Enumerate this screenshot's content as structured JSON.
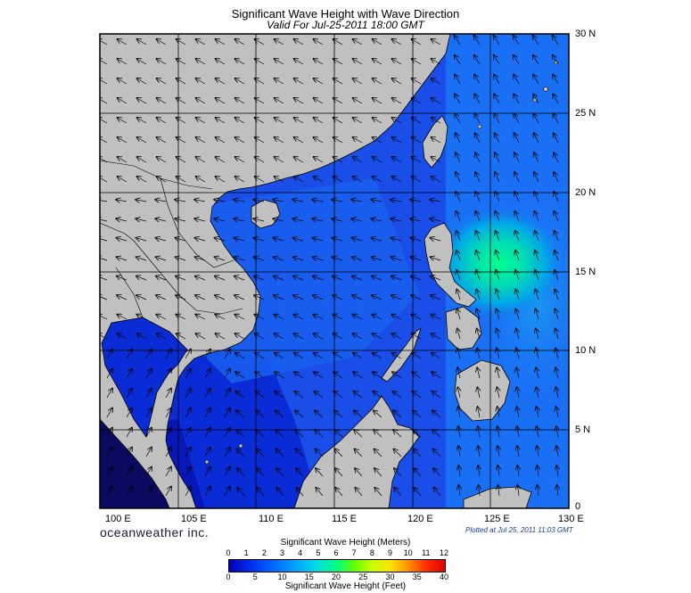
{
  "title": "Significant Wave Height with Wave Direction",
  "subtitle": "Valid For Jul-25-2011 18:00 GMT",
  "lon_labels": [
    "100 E",
    "105 E",
    "110 E",
    "115 E",
    "120 E",
    "125 E",
    "130 E"
  ],
  "lat_labels": [
    "30 N",
    "25 N",
    "20 N",
    "15 N",
    "10 N",
    "5 N",
    "0"
  ],
  "brand": "oceanweather inc.",
  "plotted": "Plotted at Jul 25, 2011 11:03 GMT",
  "colorbar": {
    "title_meters": "Significant Wave Height (Meters)",
    "title_feet": "Significant Wave Height (Feet)",
    "meter_ticks": [
      "0",
      "1",
      "2",
      "3",
      "4",
      "5",
      "6",
      "7",
      "8",
      "9",
      "10",
      "11",
      "12"
    ],
    "feet_ticks": [
      "0",
      "5",
      "10",
      "15",
      "20",
      "25",
      "30",
      "35",
      "40"
    ]
  },
  "colors": {
    "land": "#c0c0c0",
    "sea_low": "#0a2ad8",
    "sea_mid": "#1a5cf0",
    "sea_high": "#00c8d8",
    "peak": "#00ff88"
  }
}
